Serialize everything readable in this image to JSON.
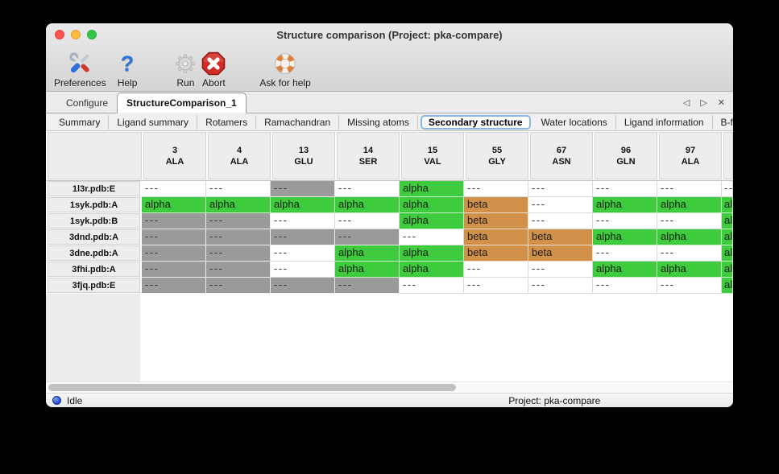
{
  "window": {
    "title": "Structure comparison (Project: pka-compare)"
  },
  "toolbar": {
    "items": [
      {
        "id": "preferences",
        "label": "Preferences",
        "icon": "tools-icon",
        "disabled": false
      },
      {
        "id": "help",
        "label": "Help",
        "icon": "question-icon",
        "disabled": false
      },
      {
        "id": "run",
        "label": "Run",
        "icon": "gear-icon",
        "disabled": true
      },
      {
        "id": "abort",
        "label": "Abort",
        "icon": "stop-icon",
        "disabled": false
      },
      {
        "id": "ask-for-help",
        "label": "Ask for help",
        "icon": "lifebuoy-icon",
        "disabled": false
      }
    ]
  },
  "main_tabs": {
    "items": [
      {
        "label": "Configure",
        "active": false
      },
      {
        "label": "StructureComparison_1",
        "active": true
      }
    ],
    "controls": {
      "prev": "◁",
      "next": "▷",
      "close": "✕"
    }
  },
  "sub_tabs": {
    "items": [
      "Summary",
      "Ligand summary",
      "Rotamers",
      "Ramachandran",
      "Missing atoms",
      "Secondary structure",
      "Water locations",
      "Ligand information",
      "B-factors"
    ],
    "active_index": 5,
    "controls": {
      "prev": "◁",
      "next": "▷"
    }
  },
  "table": {
    "columns": [
      {
        "number": "3",
        "residue": "ALA"
      },
      {
        "number": "4",
        "residue": "ALA"
      },
      {
        "number": "13",
        "residue": "GLU"
      },
      {
        "number": "14",
        "residue": "SER"
      },
      {
        "number": "15",
        "residue": "VAL"
      },
      {
        "number": "55",
        "residue": "GLY"
      },
      {
        "number": "67",
        "residue": "ASN"
      },
      {
        "number": "96",
        "residue": "GLN"
      },
      {
        "number": "97",
        "residue": "ALA"
      }
    ],
    "cell_texts": {
      "-": "---",
      "g": "---",
      "a": "alpha",
      "b": "beta"
    },
    "rows": [
      {
        "label": "1l3r.pdb:E",
        "cells": [
          "-",
          "-",
          "g",
          "-",
          "a",
          "-",
          "-",
          "-",
          "-"
        ],
        "overflow": "-"
      },
      {
        "label": "1syk.pdb:A",
        "cells": [
          "a",
          "a",
          "a",
          "a",
          "a",
          "b",
          "-",
          "a",
          "a"
        ],
        "overflow": "a"
      },
      {
        "label": "1syk.pdb:B",
        "cells": [
          "g",
          "g",
          "-",
          "-",
          "a",
          "b",
          "-",
          "-",
          "-"
        ],
        "overflow": "a"
      },
      {
        "label": "3dnd.pdb:A",
        "cells": [
          "g",
          "g",
          "g",
          "g",
          "-",
          "b",
          "b",
          "a",
          "a"
        ],
        "overflow": "a"
      },
      {
        "label": "3dne.pdb:A",
        "cells": [
          "g",
          "g",
          "-",
          "a",
          "a",
          "b",
          "b",
          "-",
          "-"
        ],
        "overflow": "a"
      },
      {
        "label": "3fhi.pdb:A",
        "cells": [
          "g",
          "g",
          "-",
          "a",
          "a",
          "-",
          "-",
          "a",
          "a"
        ],
        "overflow": "a"
      },
      {
        "label": "3fjq.pdb:E",
        "cells": [
          "g",
          "g",
          "g",
          "g",
          "-",
          "-",
          "-",
          "-",
          "-"
        ],
        "overflow": "a"
      }
    ]
  },
  "status_bar": {
    "state": "Idle",
    "project": "Project: pka-compare"
  },
  "colors": {
    "alpha": "#3ecb3e",
    "beta": "#d2914a",
    "missing_gray": "#9a9a9a"
  }
}
